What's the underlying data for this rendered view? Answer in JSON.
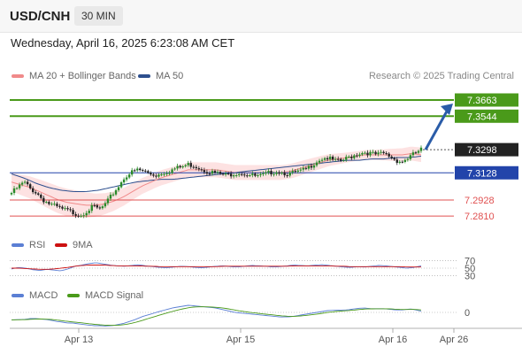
{
  "header": {
    "symbol": "USD/CNH",
    "timeframe": "30 MIN"
  },
  "datetime": "Wednesday, April 16, 2025 6:23:08 AM CET",
  "legend": {
    "ma_bb": "MA 20 + Bollinger Bands",
    "ma50": "MA 50"
  },
  "credit": "Research © 2025 Trading Central",
  "indicators": {
    "rsi": {
      "label": "RSI",
      "signal": "9MA",
      "levels": [
        "70",
        "50",
        "30"
      ]
    },
    "macd": {
      "label": "MACD",
      "signal": "MACD Signal",
      "zero": "0"
    }
  },
  "colors": {
    "ma20": "#f08a8a",
    "ma50": "#2d4f8e",
    "band": "#fde2e2",
    "resistance": "#4a9a1a",
    "pivot": "#2244aa",
    "support": "#e05050",
    "bull": "#2a8a2a",
    "bear": "#222222",
    "rsi": "#5b7fd4",
    "rsi_ma": "#cc1111",
    "macd": "#5b7fd4",
    "macd_signal": "#4a9a1a",
    "arrow": "#2a5ca8"
  },
  "chart_data": {
    "type": "candlestick",
    "x_ticks": [
      "Apr 13",
      "Apr 15",
      "Apr 16",
      "Apr 26"
    ],
    "ylim": [
      7.272,
      7.378
    ],
    "levels": [
      {
        "value": 7.3663,
        "label": "7.3663",
        "kind": "resistance"
      },
      {
        "value": 7.3544,
        "label": "7.3544",
        "kind": "resistance"
      },
      {
        "value": 7.3298,
        "label": "7.3298",
        "kind": "last"
      },
      {
        "value": 7.3128,
        "label": "7.3128",
        "kind": "pivot"
      },
      {
        "value": 7.2928,
        "label": "7.2928",
        "kind": "support"
      },
      {
        "value": 7.281,
        "label": "7.2810",
        "kind": "support"
      }
    ],
    "close_path": [
      7.298,
      7.302,
      7.306,
      7.301,
      7.298,
      7.293,
      7.29,
      7.288,
      7.286,
      7.285,
      7.283,
      7.282,
      7.285,
      7.288,
      7.286,
      7.29,
      7.297,
      7.303,
      7.31,
      7.313,
      7.315,
      7.314,
      7.312,
      7.311,
      7.313,
      7.314,
      7.316,
      7.317,
      7.319,
      7.318,
      7.316,
      7.314,
      7.313,
      7.312,
      7.311,
      7.312,
      7.313,
      7.312,
      7.311,
      7.31,
      7.311,
      7.313,
      7.314,
      7.313,
      7.312,
      7.313,
      7.314,
      7.316,
      7.32,
      7.323,
      7.324,
      7.322,
      7.321,
      7.323,
      7.325,
      7.327,
      7.328,
      7.327,
      7.326,
      7.327,
      7.325,
      7.322,
      7.321,
      7.324,
      7.327,
      7.33
    ],
    "ma20": [
      7.306,
      7.304,
      7.302,
      7.299,
      7.296,
      7.293,
      7.291,
      7.29,
      7.289,
      7.289,
      7.29,
      7.292,
      7.295,
      7.299,
      7.303,
      7.306,
      7.309,
      7.311,
      7.313,
      7.315,
      7.315,
      7.315,
      7.315,
      7.314,
      7.313,
      7.313,
      7.313,
      7.313,
      7.313,
      7.313,
      7.314,
      7.316,
      7.318,
      7.32,
      7.322,
      7.323,
      7.324,
      7.325,
      7.326,
      7.326,
      7.326,
      7.326,
      7.326,
      7.327,
      7.326
    ],
    "ma50": [
      7.312,
      7.309,
      7.305,
      7.302,
      7.3,
      7.299,
      7.299,
      7.3,
      7.302,
      7.304,
      7.306,
      7.307,
      7.308,
      7.308,
      7.309,
      7.31,
      7.311,
      7.312,
      7.313,
      7.314,
      7.315,
      7.316,
      7.317,
      7.318,
      7.319,
      7.32,
      7.321,
      7.322,
      7.322,
      7.323,
      7.323,
      7.324,
      7.324,
      7.325
    ],
    "forecast_arrow": {
      "from": 7.3298,
      "to": 7.3663
    },
    "rsi": [
      48,
      52,
      50,
      46,
      44,
      47,
      45,
      43,
      48,
      55,
      58,
      62,
      64,
      61,
      58,
      56,
      55,
      57,
      59,
      56,
      54,
      52,
      51,
      53,
      55,
      54,
      52,
      51,
      53,
      55,
      56,
      54,
      53,
      55,
      57,
      56,
      55,
      53,
      54,
      56,
      58,
      57,
      56,
      58,
      59,
      57,
      55,
      53,
      52,
      54,
      53,
      55,
      57,
      56,
      54,
      52,
      50,
      52,
      56
    ],
    "rsi_ma": [
      50,
      50,
      49,
      48,
      47,
      47,
      48,
      50,
      52,
      55,
      57,
      58,
      58,
      58,
      57,
      56,
      56,
      56,
      56,
      55,
      55,
      54,
      54,
      54,
      54,
      54,
      54,
      54,
      54,
      54,
      55,
      55,
      55,
      55,
      55,
      55,
      55,
      55,
      55,
      55,
      56,
      56,
      56,
      56,
      56,
      56,
      55,
      55,
      54,
      54,
      54,
      54,
      54,
      54,
      54,
      54,
      53,
      53,
      53
    ]
  }
}
